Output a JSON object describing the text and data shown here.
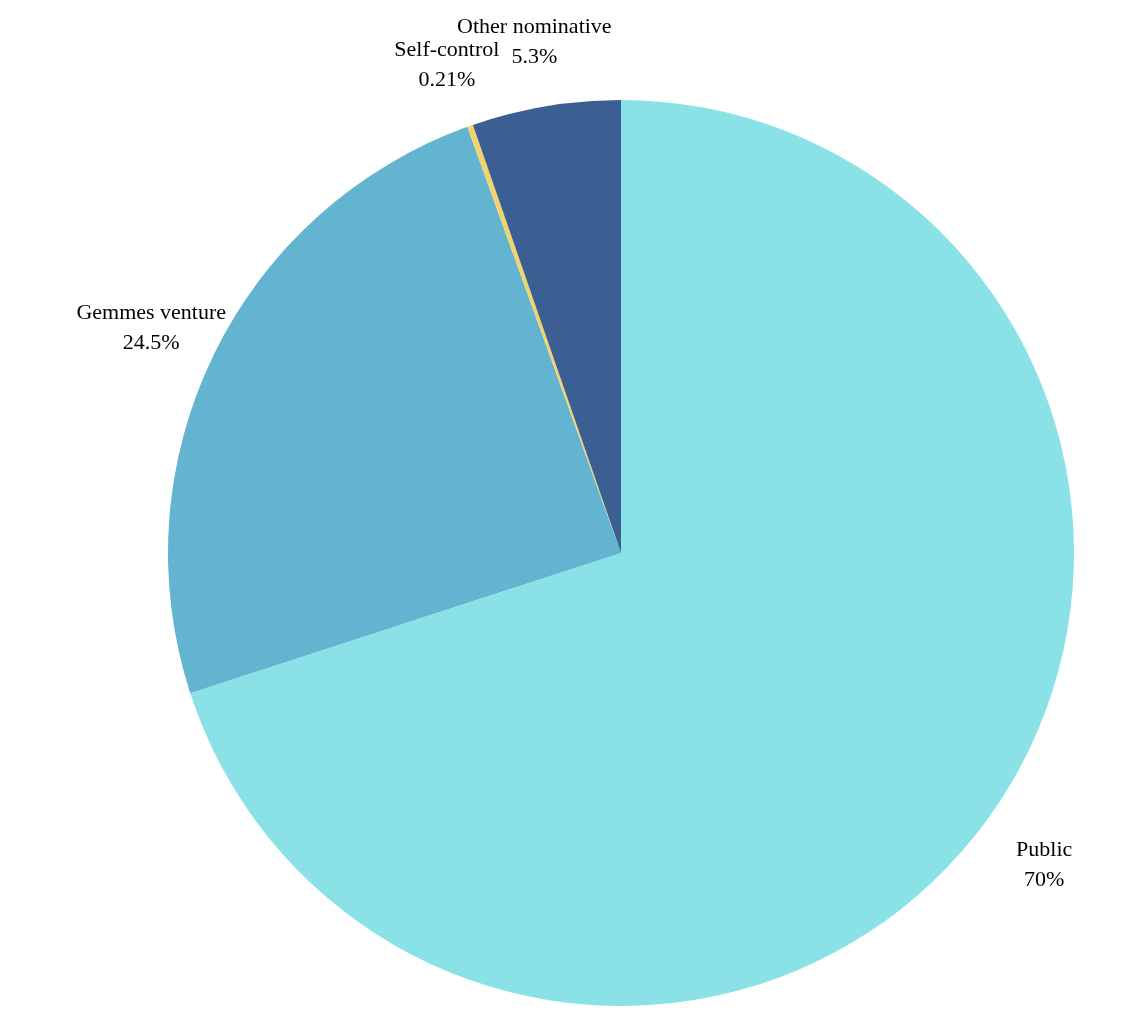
{
  "chart_data": {
    "type": "pie",
    "categories": [
      "Public",
      "Gemmes venture",
      "Self-control",
      "Other nominative"
    ],
    "values": [
      70,
      24.5,
      0.21,
      5.3
    ],
    "value_labels": [
      "70%",
      "24.5%",
      "0.21%",
      "5.3%"
    ],
    "colors": [
      "#8ae2e6",
      "#62b4d1",
      "#f2d46b",
      "#3b5f92"
    ]
  }
}
